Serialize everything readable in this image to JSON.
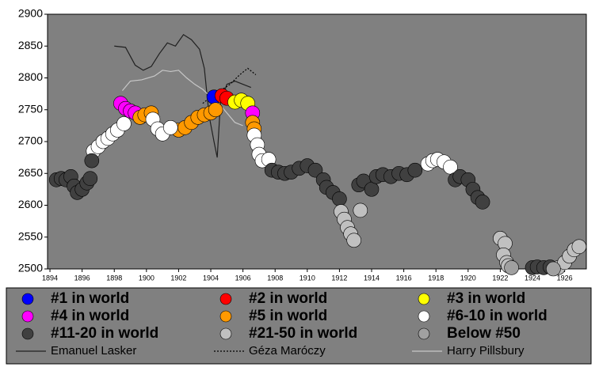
{
  "chart_data": {
    "type": "scatter",
    "xlim": [
      1893.85,
      1927.35
    ],
    "ylim": [
      2500,
      2900
    ],
    "xticks": [
      1894,
      1896,
      1898,
      1900,
      1902,
      1904,
      1906,
      1908,
      1910,
      1912,
      1914,
      1916,
      1918,
      1920,
      1922,
      1924,
      1926
    ],
    "yticks": [
      2500,
      2550,
      2600,
      2650,
      2700,
      2750,
      2800,
      2850,
      2900
    ],
    "series": [
      {
        "name": "#1 in world",
        "color": "#0000ff",
        "x": [
          1904.2
        ],
        "values": [
          2770
        ]
      },
      {
        "name": "#2 in world",
        "color": "#ff0000",
        "x": [
          1904.7,
          1905.0
        ],
        "values": [
          2772,
          2768
        ]
      },
      {
        "name": "#3 in world",
        "color": "#ffff00",
        "x": [
          1905.5,
          1905.9,
          1906.3
        ],
        "values": [
          2762,
          2765,
          2760
        ]
      },
      {
        "name": "#4 in world",
        "color": "#ff00ff",
        "x": [
          1898.4,
          1898.7,
          1899.0,
          1899.3,
          1906.6
        ],
        "values": [
          2760,
          2752,
          2748,
          2745,
          2745
        ]
      },
      {
        "name": "#5 in world",
        "color": "#ff9900",
        "x": [
          1899.6,
          1899.9,
          1900.3,
          1902.0,
          1902.4,
          1902.8,
          1903.2,
          1903.6,
          1904.0,
          1904.3,
          1906.6,
          1906.7
        ],
        "values": [
          2738,
          2742,
          2745,
          2718,
          2722,
          2730,
          2738,
          2742,
          2745,
          2750,
          2730,
          2720
        ]
      },
      {
        "name": "#6-10 in world",
        "color": "#ffffff",
        "x": [
          1896.7,
          1897.0,
          1897.3,
          1897.6,
          1897.9,
          1898.2,
          1898.6,
          1900.4,
          1900.7,
          1901.0,
          1901.5,
          1906.7,
          1906.9,
          1907.0,
          1907.2,
          1907.6,
          1917.5,
          1917.8,
          1918.1,
          1918.5,
          1918.9
        ],
        "values": [
          2685,
          2692,
          2700,
          2705,
          2712,
          2718,
          2728,
          2735,
          2720,
          2712,
          2722,
          2710,
          2695,
          2680,
          2670,
          2672,
          2665,
          2670,
          2672,
          2668,
          2660
        ]
      },
      {
        "name": "#11-20 in world",
        "color": "#404040",
        "x": [
          1894.4,
          1894.7,
          1895.0,
          1895.3,
          1895.5,
          1895.7,
          1896.0,
          1896.3,
          1896.5,
          1896.6,
          1907.8,
          1908.2,
          1908.6,
          1909.0,
          1909.5,
          1910.0,
          1910.5,
          1911.0,
          1911.2,
          1911.6,
          1912.0,
          1913.2,
          1913.5,
          1914.0,
          1914.3,
          1914.7,
          1915.2,
          1915.7,
          1916.2,
          1916.7,
          1919.2,
          1919.5,
          1920.0,
          1920.3,
          1920.6,
          1920.9,
          1924.0,
          1924.3,
          1924.7,
          1925.1
        ],
        "values": [
          2640,
          2642,
          2640,
          2645,
          2630,
          2620,
          2625,
          2635,
          2642,
          2670,
          2655,
          2652,
          2650,
          2652,
          2658,
          2662,
          2655,
          2640,
          2628,
          2620,
          2610,
          2632,
          2638,
          2625,
          2645,
          2648,
          2645,
          2650,
          2648,
          2655,
          2640,
          2645,
          2640,
          2625,
          2612,
          2605,
          2502,
          2503,
          2502,
          2503
        ]
      },
      {
        "name": "#21-50 in world",
        "color": "#c0c0c0",
        "x": [
          1912.1,
          1912.3,
          1912.5,
          1912.7,
          1912.9,
          1913.3,
          1922.0,
          1922.3,
          1922.2,
          1922.4,
          1922.5,
          1925.6,
          1926.0,
          1926.3,
          1926.6,
          1926.9
        ],
        "values": [
          2590,
          2578,
          2565,
          2555,
          2545,
          2592,
          2548,
          2540,
          2522,
          2510,
          2505,
          2502,
          2510,
          2520,
          2530,
          2535
        ]
      },
      {
        "name": "Below #50",
        "color": "#a0a0a0",
        "x": [
          1922.7,
          1925.3
        ],
        "values": [
          2502,
          2500
        ]
      },
      {
        "name": "Emanuel Lasker",
        "type": "line",
        "color": "#202020",
        "x": [
          1898.0,
          1898.7,
          1899.3,
          1899.8,
          1900.3,
          1900.8,
          1901.3,
          1901.8,
          1902.3,
          1902.8,
          1903.3,
          1903.6,
          1903.9,
          1904.2,
          1904.4,
          1904.6,
          1905.0,
          1905.5,
          1906.0,
          1906.5
        ],
        "values": [
          2850,
          2848,
          2820,
          2812,
          2818,
          2838,
          2855,
          2850,
          2868,
          2860,
          2845,
          2815,
          2740,
          2700,
          2675,
          2760,
          2790,
          2795,
          2790,
          2785
        ]
      },
      {
        "name": "Géza Maróczy",
        "type": "line",
        "dash": "dotted",
        "color": "#000000",
        "x": [
          1903.5,
          1904.0,
          1904.6,
          1905.2,
          1905.8,
          1906.3,
          1906.8
        ],
        "values": [
          2760,
          2770,
          2780,
          2790,
          2805,
          2815,
          2805
        ]
      },
      {
        "name": "Harry Pillsbury",
        "type": "line",
        "color": "#c8c8c8",
        "x": [
          1898.5,
          1899.0,
          1899.7,
          1900.5,
          1901.0,
          1901.5,
          1902.0,
          1902.5,
          1903.0,
          1903.5,
          1904.0,
          1904.5,
          1905.0,
          1905.5,
          1906.0
        ],
        "values": [
          2780,
          2795,
          2797,
          2803,
          2812,
          2810,
          2812,
          2800,
          2790,
          2782,
          2770,
          2760,
          2745,
          2730,
          2725
        ]
      }
    ]
  }
}
